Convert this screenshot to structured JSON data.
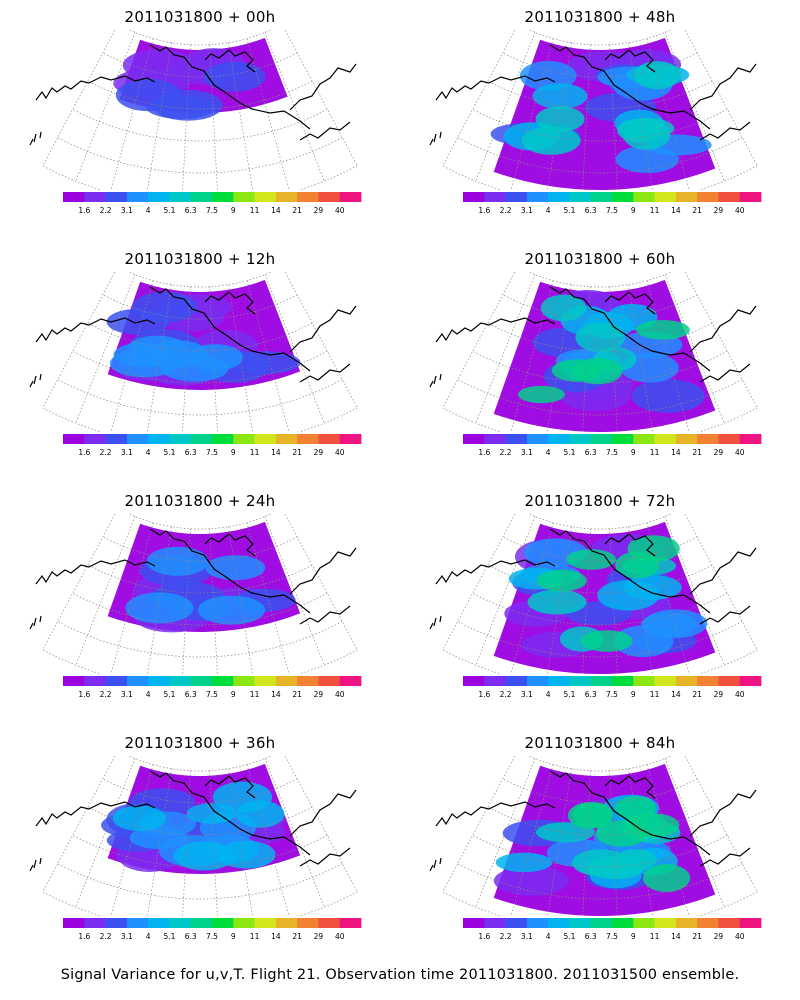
{
  "panels": [
    {
      "title": "2011031800 + 00h",
      "lead": "00h",
      "field": {
        "intensity": 0.15,
        "coverage": "sparse"
      }
    },
    {
      "title": "2011031800 + 48h",
      "lead": "48h",
      "field": {
        "intensity": 0.45,
        "coverage": "broad"
      }
    },
    {
      "title": "2011031800 + 12h",
      "lead": "12h",
      "field": {
        "intensity": 0.25,
        "coverage": "partial"
      }
    },
    {
      "title": "2011031800 + 60h",
      "lead": "60h",
      "field": {
        "intensity": 0.55,
        "coverage": "broad"
      }
    },
    {
      "title": "2011031800 + 24h",
      "lead": "24h",
      "field": {
        "intensity": 0.3,
        "coverage": "partial"
      }
    },
    {
      "title": "2011031800 + 72h",
      "lead": "72h",
      "field": {
        "intensity": 0.6,
        "coverage": "broad"
      }
    },
    {
      "title": "2011031800 + 36h",
      "lead": "36h",
      "field": {
        "intensity": 0.4,
        "coverage": "partial"
      }
    },
    {
      "title": "2011031800 + 84h",
      "lead": "84h",
      "field": {
        "intensity": 0.6,
        "coverage": "broad"
      }
    }
  ],
  "colorbar": {
    "labels": [
      "1.6",
      "2.2",
      "3.1",
      "4",
      "5.1",
      "6.3",
      "7.5",
      "9",
      "11",
      "14",
      "21",
      "29",
      "40"
    ],
    "colors": [
      "#9b00e0",
      "#7a2cf0",
      "#3c50f0",
      "#1e90ff",
      "#00b4f0",
      "#00c8c8",
      "#00d28c",
      "#00dc3c",
      "#8ce614",
      "#d2e61e",
      "#e6b428",
      "#f08232",
      "#f0503c",
      "#f01482"
    ]
  },
  "footer": "Signal Variance for u,v,T. Flight 21. Observation time 2011031800. 2011031500 ensemble."
}
